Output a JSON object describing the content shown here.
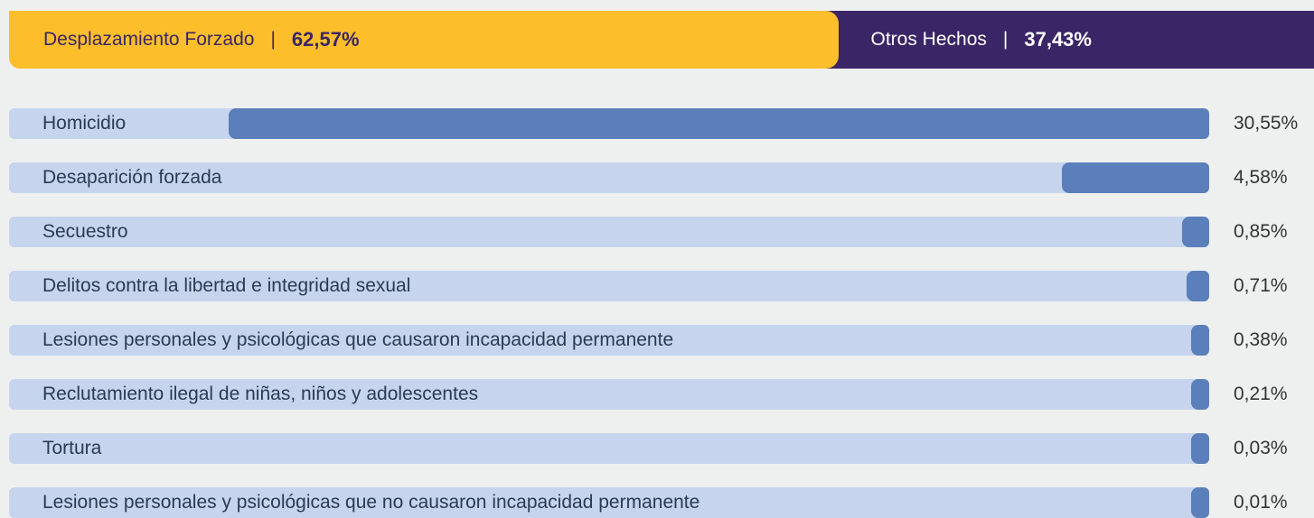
{
  "chart_data": {
    "type": "hbar",
    "header": [
      {
        "name": "Desplazamiento Forzado",
        "value": 62.57,
        "value_label": "62,57%",
        "color": "#fdbe2c",
        "text_color": "#3a2566"
      },
      {
        "name": "Otros Hechos",
        "value": 37.43,
        "value_label": "37,43%",
        "color": "#3a2566",
        "text_color": "#ffffff"
      }
    ],
    "separator": "|",
    "categories": [
      "Homicidio",
      "Desaparición forzada",
      "Secuestro",
      "Delitos contra la libertad e integridad sexual",
      "Lesiones personales y psicológicas que causaron incapacidad permanente",
      "Reclutamiento ilegal de niñas, niños y adolescentes",
      "Tortura",
      "Lesiones personales y psicológicas que no causaron incapacidad permanente"
    ],
    "values": [
      30.55,
      4.58,
      0.85,
      0.71,
      0.38,
      0.21,
      0.03,
      0.01
    ],
    "value_labels": [
      "30,55%",
      "4,58%",
      "0,85%",
      "0,71%",
      "0,38%",
      "0,21%",
      "0,03%",
      "0,01%"
    ],
    "color": "#5b7fba",
    "track_color": "#c6d5ed"
  }
}
